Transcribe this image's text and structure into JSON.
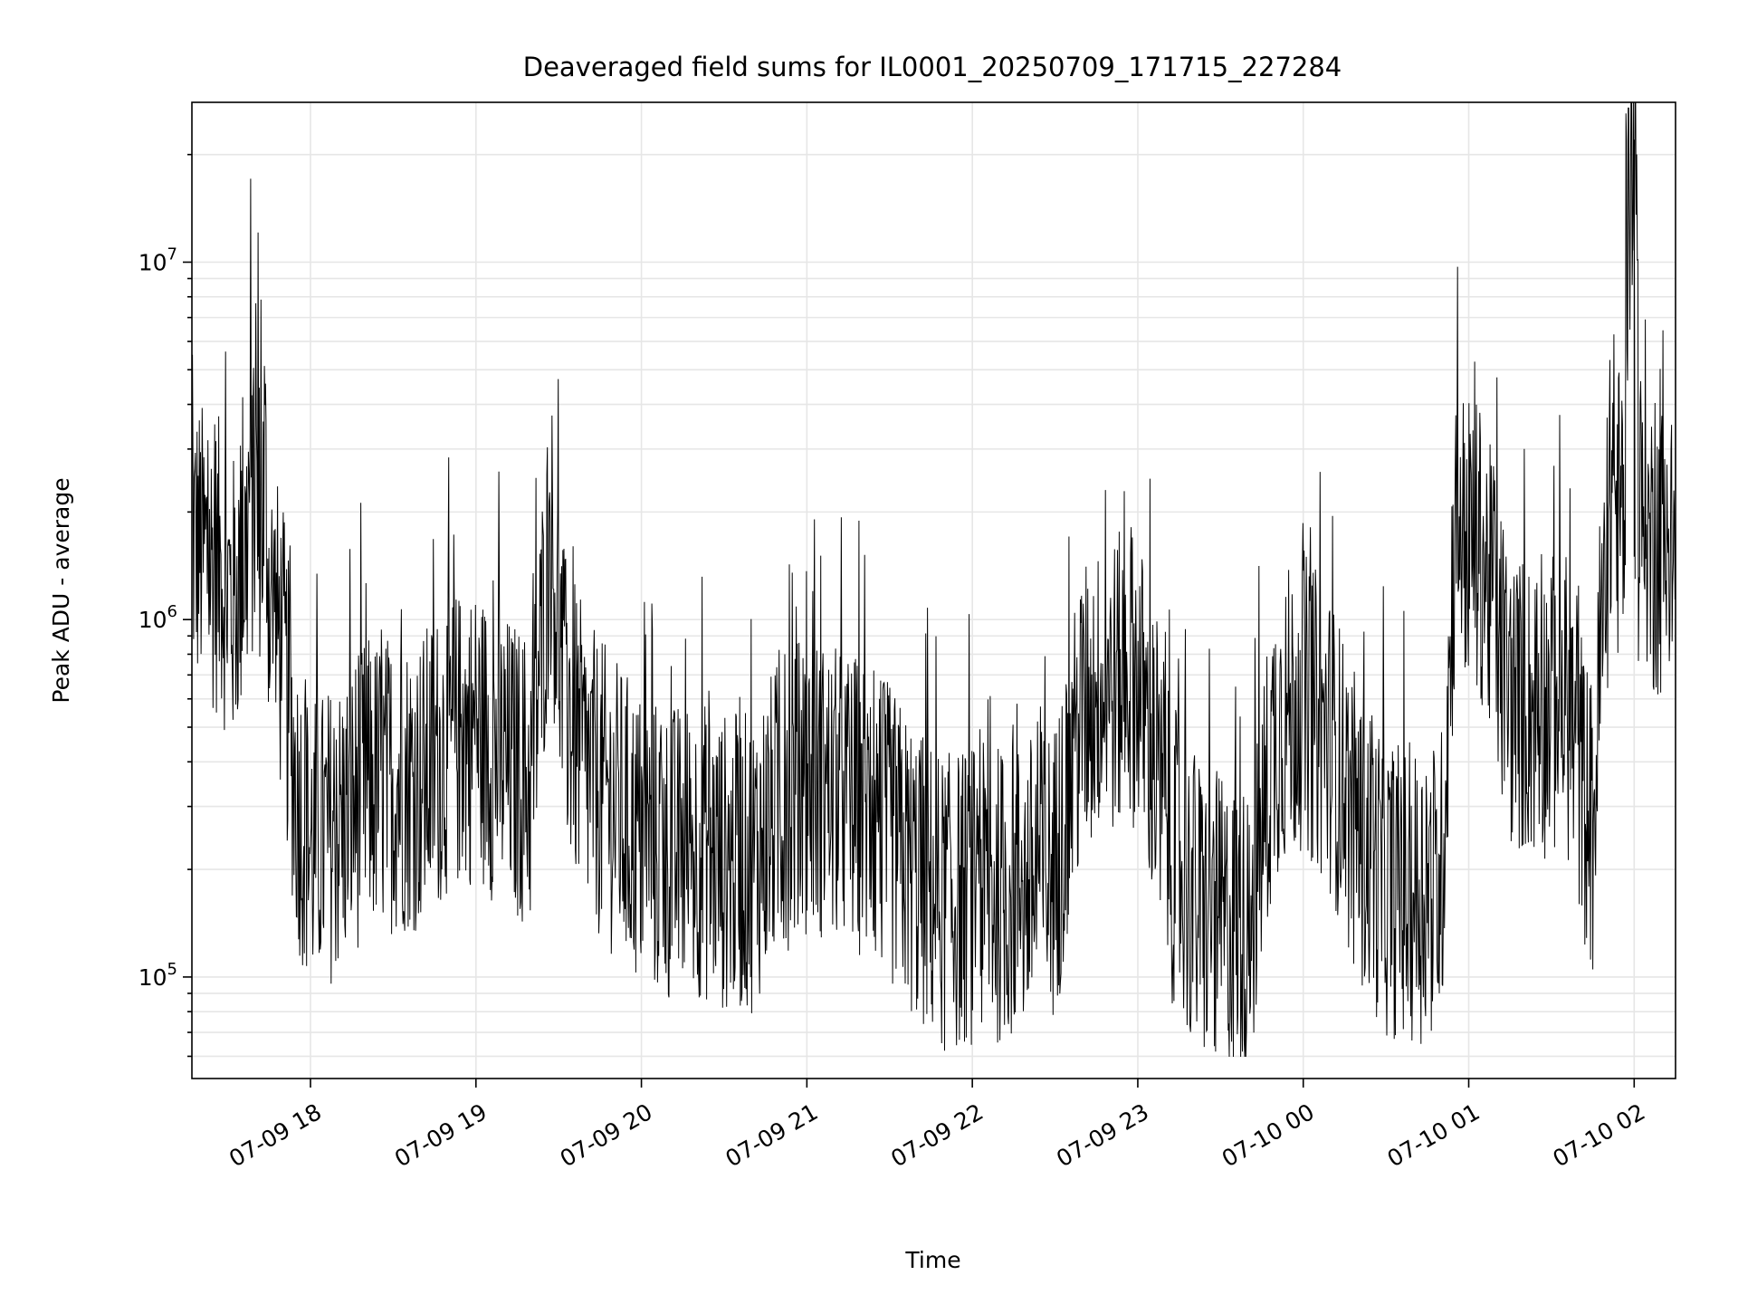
{
  "chart_data": {
    "type": "line",
    "title": "Deaveraged field sums for IL0001_20250709_171715_227284",
    "xlabel": "Time",
    "ylabel": "Peak ADU - average",
    "y_scale": "log",
    "ylim": [
      52000,
      28000000
    ],
    "xlim": [
      "2025-07-09 17:17",
      "2025-07-10 02:15"
    ],
    "x_ticks": [
      "07-09 18",
      "07-09 19",
      "07-09 20",
      "07-09 21",
      "07-09 22",
      "07-09 23",
      "07-10 00",
      "07-10 01",
      "07-10 02"
    ],
    "y_ticks": [
      100000,
      1000000,
      10000000
    ],
    "grid": true,
    "line_color": "#000000",
    "series": [
      {
        "points": [
          [
            "2025-07-09 17:17",
            1700000
          ],
          [
            "2025-07-09 17:22",
            1500000
          ],
          [
            "2025-07-09 17:27",
            1400000
          ],
          [
            "2025-07-09 17:32",
            1100000
          ],
          [
            "2025-07-09 17:37",
            1600000
          ],
          [
            "2025-07-09 17:41",
            10000000
          ],
          [
            "2025-07-09 17:45",
            1200000
          ],
          [
            "2025-07-09 17:50",
            800000
          ],
          [
            "2025-07-09 17:55",
            320000
          ],
          [
            "2025-07-09 18:00",
            230000
          ],
          [
            "2025-07-09 18:10",
            260000
          ],
          [
            "2025-07-09 18:20",
            340000
          ],
          [
            "2025-07-09 18:30",
            350000
          ],
          [
            "2025-07-09 18:40",
            350000
          ],
          [
            "2025-07-09 18:50",
            450000
          ],
          [
            "2025-07-09 19:00",
            480000
          ],
          [
            "2025-07-09 19:10",
            400000
          ],
          [
            "2025-07-09 19:20",
            350000
          ],
          [
            "2025-07-09 19:27",
            1800000
          ],
          [
            "2025-07-09 19:32",
            600000
          ],
          [
            "2025-07-09 19:40",
            380000
          ],
          [
            "2025-07-09 19:50",
            300000
          ],
          [
            "2025-07-09 20:00",
            240000
          ],
          [
            "2025-07-09 20:10",
            220000
          ],
          [
            "2025-07-09 20:20",
            230000
          ],
          [
            "2025-07-09 20:30",
            210000
          ],
          [
            "2025-07-09 20:40",
            210000
          ],
          [
            "2025-07-09 20:50",
            300000
          ],
          [
            "2025-07-09 21:00",
            350000
          ],
          [
            "2025-07-09 21:10",
            320000
          ],
          [
            "2025-07-09 21:20",
            300000
          ],
          [
            "2025-07-09 21:30",
            250000
          ],
          [
            "2025-07-09 21:40",
            190000
          ],
          [
            "2025-07-09 21:50",
            160000
          ],
          [
            "2025-07-09 22:00",
            170000
          ],
          [
            "2025-07-09 22:10",
            170000
          ],
          [
            "2025-07-09 22:20",
            180000
          ],
          [
            "2025-07-09 22:30",
            200000
          ],
          [
            "2025-07-09 22:40",
            550000
          ],
          [
            "2025-07-09 22:50",
            650000
          ],
          [
            "2025-07-09 23:00",
            700000
          ],
          [
            "2025-07-09 23:10",
            250000
          ],
          [
            "2025-07-09 23:20",
            160000
          ],
          [
            "2025-07-09 23:30",
            140000
          ],
          [
            "2025-07-09 23:40",
            130000
          ],
          [
            "2025-07-09 23:50",
            500000
          ],
          [
            "2025-07-10 00:00",
            600000
          ],
          [
            "2025-07-10 00:10",
            450000
          ],
          [
            "2025-07-10 00:20",
            250000
          ],
          [
            "2025-07-10 00:30",
            180000
          ],
          [
            "2025-07-10 00:40",
            170000
          ],
          [
            "2025-07-10 00:50",
            180000
          ],
          [
            "2025-07-10 00:55",
            1800000
          ],
          [
            "2025-07-10 01:05",
            1500000
          ],
          [
            "2025-07-10 01:15",
            600000
          ],
          [
            "2025-07-10 01:25",
            550000
          ],
          [
            "2025-07-10 01:35",
            600000
          ],
          [
            "2025-07-10 01:45",
            250000
          ],
          [
            "2025-07-10 01:50",
            1500000
          ],
          [
            "2025-07-10 02:00",
            22000000
          ],
          [
            "2025-07-10 02:05",
            1600000
          ],
          [
            "2025-07-10 02:15",
            1600000
          ]
        ]
      }
    ]
  }
}
